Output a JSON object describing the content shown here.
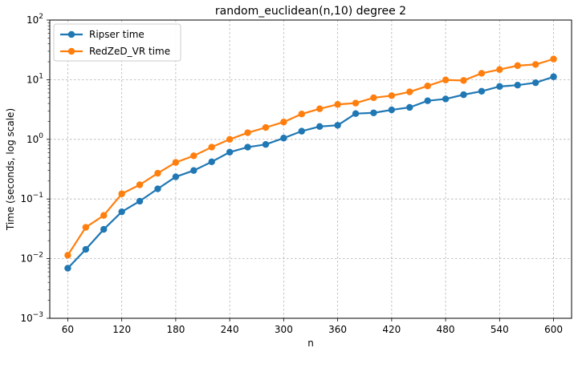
{
  "chart_data": {
    "type": "line",
    "title": "random_euclidean(n,10) degree 2",
    "xlabel": "n",
    "ylabel": "Time (seconds, log scale)",
    "yscale": "log",
    "ylim": [
      0.001,
      100
    ],
    "xlim": [
      40,
      620
    ],
    "grid": true,
    "legend_position": "top-left",
    "x_ticks": [
      60,
      120,
      180,
      240,
      300,
      360,
      420,
      480,
      540,
      600
    ],
    "x_tick_labels": [
      "60",
      "120",
      "180",
      "240",
      "300",
      "360",
      "420",
      "480",
      "540",
      "600"
    ],
    "y_ticks": [
      0.001,
      0.01,
      0.1,
      1,
      10,
      100
    ],
    "y_tick_labels": [
      {
        "base": "10",
        "exp": "−3"
      },
      {
        "base": "10",
        "exp": "−2"
      },
      {
        "base": "10",
        "exp": "−1"
      },
      {
        "base": "10",
        "exp": "0"
      },
      {
        "base": "10",
        "exp": "1"
      },
      {
        "base": "10",
        "exp": "2"
      }
    ],
    "x": [
      60,
      80,
      100,
      120,
      140,
      160,
      180,
      200,
      220,
      240,
      260,
      280,
      300,
      320,
      340,
      360,
      380,
      400,
      420,
      440,
      460,
      480,
      500,
      520,
      540,
      560,
      580,
      600
    ],
    "series": [
      {
        "name": "Ripser time",
        "color": "#1f77b4",
        "values": [
          0.0069,
          0.0143,
          0.031,
          0.061,
          0.092,
          0.148,
          0.235,
          0.3,
          0.42,
          0.61,
          0.74,
          0.82,
          1.05,
          1.37,
          1.64,
          1.72,
          2.7,
          2.78,
          3.12,
          3.43,
          4.43,
          4.75,
          5.6,
          6.4,
          7.7,
          8.1,
          8.9,
          11.2
        ]
      },
      {
        "name": "RedZeD_VR time",
        "color": "#ff7f0e",
        "values": [
          0.0114,
          0.0335,
          0.053,
          0.122,
          0.173,
          0.27,
          0.41,
          0.53,
          0.74,
          1.0,
          1.29,
          1.58,
          1.95,
          2.66,
          3.25,
          3.85,
          4.05,
          4.98,
          5.4,
          6.25,
          7.85,
          9.9,
          9.7,
          12.8,
          14.8,
          17.2,
          18.0,
          22.2
        ]
      }
    ]
  }
}
